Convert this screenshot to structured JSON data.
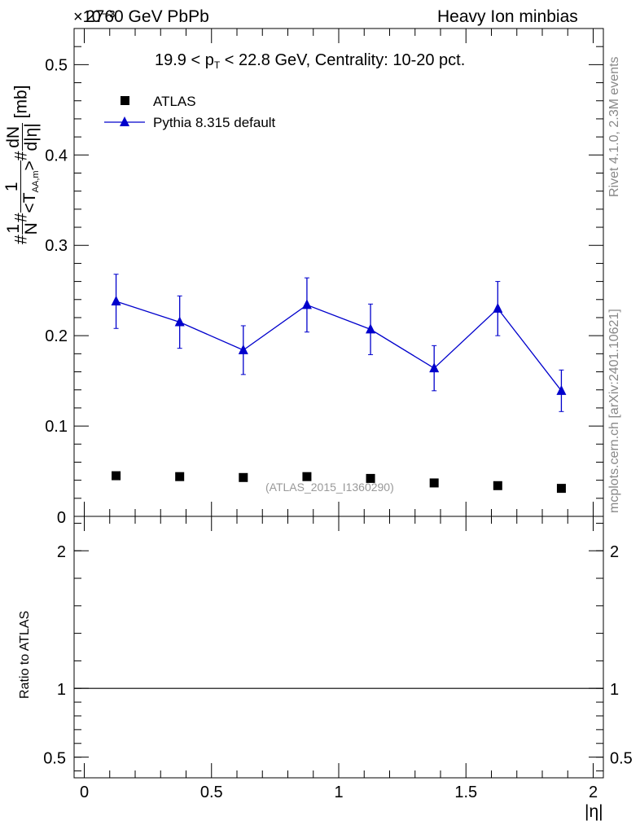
{
  "header": {
    "left": "2760 GeV PbPb",
    "right": "Heavy Ion minbias",
    "exponent": "×10⁻³"
  },
  "plot_title": {
    "prefix": "19.9 < p",
    "sub": "T",
    "suffix": " < 22.8 GeV, Centrality: 10-20 pct."
  },
  "side_texts": {
    "rivet": "Rivet 4.1.0,  2.3M events",
    "mcplots": "mcplots.cern.ch [arXiv:2401.10621]"
  },
  "watermark": "(ATLAS_2015_I1360290)",
  "y_axis_label": {
    "part1": "#",
    "frac1_num": "1",
    "frac1_den": "N",
    "part2": "#",
    "frac2_num": "1",
    "frac2_den_pre": "<T",
    "frac2_den_sub": "AA,m",
    "frac2_den_post": ">",
    "part3": "#",
    "frac3_num": "dN",
    "frac3_den": "d|η|",
    "unit": "[mb]"
  },
  "ratio_label": "Ratio to ATLAS",
  "x_axis_label": "|η|",
  "colors": {
    "pythia": "#0000cc",
    "atlas": "#000000"
  },
  "chart_data": {
    "type": "scatter",
    "x": [
      0.125,
      0.375,
      0.625,
      0.875,
      1.125,
      1.375,
      1.625,
      1.875
    ],
    "series": [
      {
        "name": "ATLAS",
        "marker": "square",
        "values": [
          0.045,
          0.044,
          0.043,
          0.044,
          0.042,
          0.037,
          0.034,
          0.031
        ]
      },
      {
        "name": "Pythia 8.315 default",
        "marker": "triangle",
        "line": true,
        "values": [
          0.238,
          0.215,
          0.184,
          0.234,
          0.207,
          0.164,
          0.23,
          0.139
        ],
        "errors": [
          0.03,
          0.029,
          0.027,
          0.03,
          0.028,
          0.025,
          0.03,
          0.023
        ]
      }
    ],
    "xlim": [
      -0.04,
      2.04
    ],
    "ylim": [
      0,
      0.54
    ],
    "y_ticks": [
      0.1,
      0.2,
      0.3,
      0.4,
      0.5
    ],
    "y_tick_labels": [
      "0.1",
      "0.2",
      "0.3",
      "0.4",
      "0.5"
    ],
    "y_zero_label": "0",
    "x_ticks": [
      0,
      0.5,
      1,
      1.5,
      2
    ],
    "x_tick_labels": [
      "0",
      "0.5",
      "1",
      "1.5",
      "2"
    ],
    "ratio": {
      "ylim": [
        0.35,
        2.25
      ],
      "ticks": [
        0.5,
        1,
        2
      ],
      "tick_labels": [
        "0.5",
        "1",
        "2"
      ],
      "reference": 1
    },
    "legend_position": "top-left"
  }
}
